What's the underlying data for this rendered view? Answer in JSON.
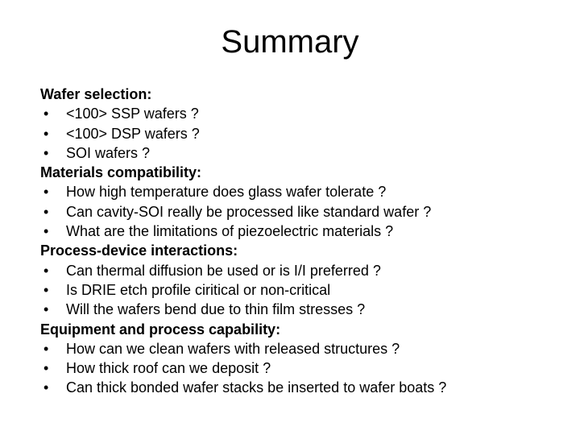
{
  "title": "Summary",
  "sections": [
    {
      "heading": "Wafer selection:",
      "bullets": [
        "<100> SSP wafers ?",
        "<100> DSP wafers ?",
        "SOI wafers ?"
      ]
    },
    {
      "heading": "Materials compatibility:",
      "bullets": [
        "How high temperature does glass wafer tolerate ?",
        "Can cavity-SOI really be processed like standard wafer ?",
        "What are the limitations of piezoelectric materials ?"
      ]
    },
    {
      "heading": "Process-device interactions:",
      "bullets": [
        "Can thermal diffusion be used or is I/I preferred ?",
        "Is DRIE etch profile ciritical or non-critical",
        "Will the wafers bend due to thin film stresses ?"
      ]
    },
    {
      "heading": "Equipment and process capability:",
      "bullets": [
        "How can we clean wafers with released structures ?",
        "How thick roof can we deposit ?",
        "Can thick bonded wafer stacks be inserted to wafer boats ?"
      ]
    }
  ],
  "style": {
    "background_color": "#ffffff",
    "text_color": "#000000",
    "title_fontsize": 40,
    "body_fontsize": 18,
    "font_family": "Arial",
    "bullet_char": "•"
  }
}
